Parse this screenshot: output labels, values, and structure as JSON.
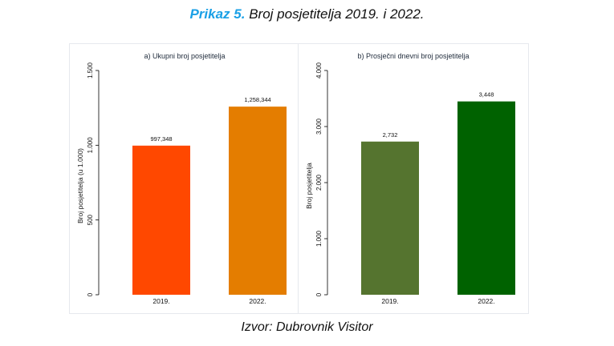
{
  "figure": {
    "label": "Prikaz 5.",
    "title": "Broj posjetitelja 2019. i 2022.",
    "source": "Izvor: Dubrovnik Visitor"
  },
  "chart_data": [
    {
      "type": "bar",
      "title": "a) Ukupni broj posjetitelja",
      "ylabel": "Broj posjetitelja (u 1.000)",
      "xlabel": "",
      "categories": [
        "2019.",
        "2022."
      ],
      "values": [
        997.348,
        1258.344
      ],
      "value_labels": [
        "997,348",
        "1,258,344"
      ],
      "colors": [
        "#ff4800",
        "#e47d00"
      ],
      "ylim": [
        0,
        1500
      ],
      "yticks": [
        0,
        500,
        1000,
        1500
      ],
      "ytick_labels": [
        "0",
        "500",
        "1.000",
        "1.500"
      ],
      "grid": false
    },
    {
      "type": "bar",
      "title": "b) Prosječni dnevni broj posjetitelja",
      "ylabel": "Broj posjetitelja",
      "xlabel": "",
      "categories": [
        "2019.",
        "2022."
      ],
      "values": [
        2732,
        3448
      ],
      "value_labels": [
        "2,732",
        "3,448"
      ],
      "colors": [
        "#55742f",
        "#006200"
      ],
      "ylim": [
        0,
        4000
      ],
      "yticks": [
        0,
        1000,
        2000,
        3000,
        4000
      ],
      "ytick_labels": [
        "0",
        "1.000",
        "2.000",
        "3.000",
        "4.000"
      ],
      "grid": false
    }
  ]
}
